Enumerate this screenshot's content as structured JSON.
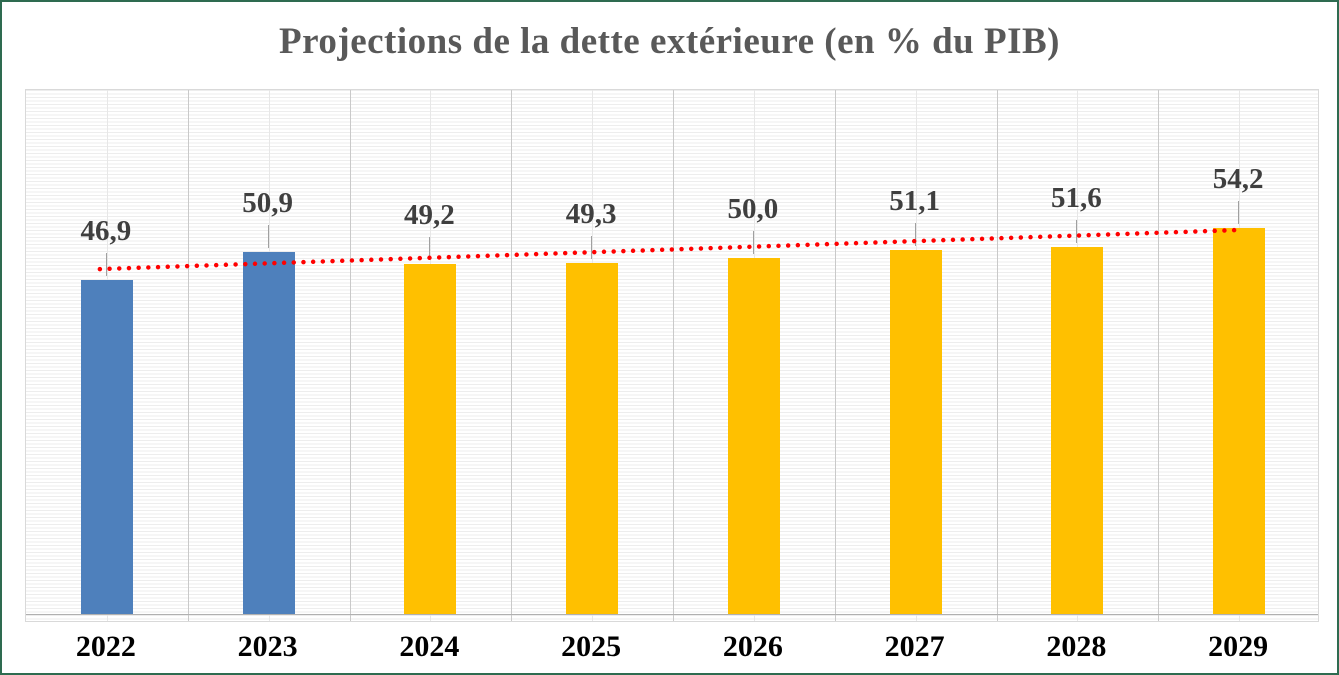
{
  "title": "Projections de la dette extérieure (en % du PIB)",
  "chart_data": {
    "type": "bar",
    "title": "Projections de la dette extérieure (en % du PIB)",
    "categories": [
      "2022",
      "2023",
      "2024",
      "2025",
      "2026",
      "2027",
      "2028",
      "2029"
    ],
    "values": [
      46.9,
      50.9,
      49.2,
      49.3,
      50.0,
      51.1,
      51.6,
      54.2
    ],
    "data_labels": [
      "46,9",
      "50,9",
      "49,2",
      "49,3",
      "50,0",
      "51,1",
      "51,6",
      "54,2"
    ],
    "bar_colors": [
      "#4E80BC",
      "#4E80BC",
      "#FFC000",
      "#FFC000",
      "#FFC000",
      "#FFC000",
      "#FFC000",
      "#FFC000"
    ],
    "trendline": {
      "shape": "linear-dotted",
      "color": "#FF0000",
      "start_value": 48.3,
      "end_value": 53.8
    },
    "xlabel": "",
    "ylabel": "",
    "ylim": [
      0,
      74
    ],
    "y_axis_labels_visible": false,
    "grid": true,
    "legend": false
  },
  "colors": {
    "bar_blue": "#4E80BC",
    "bar_gold": "#FFC000",
    "trendline_red": "#FF0000",
    "title_text": "#595959",
    "data_label_text": "#3F3F3F",
    "axis_label_text": "#000000",
    "frame_border_green": "#2E6B50",
    "gridline_major": "#C9C9C9",
    "gridline_minor": "#E7E7E7"
  }
}
